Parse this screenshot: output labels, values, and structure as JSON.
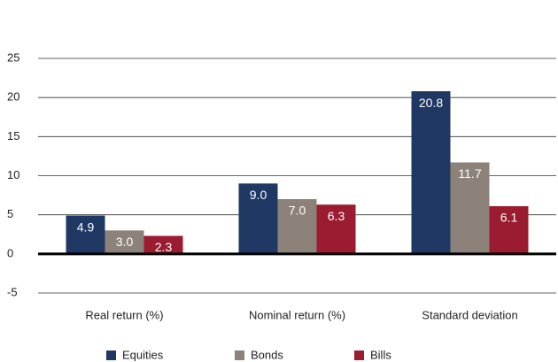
{
  "chart_data": {
    "type": "bar",
    "categories": [
      "Real return (%)",
      "Nominal return (%)",
      "Standard deviation"
    ],
    "series": [
      {
        "name": "Equities",
        "color": "#1f3864",
        "values": [
          4.9,
          9.0,
          20.8
        ],
        "value_labels": [
          "4.9",
          "9.0",
          "20.8"
        ]
      },
      {
        "name": "Bonds",
        "color": "#8c8279",
        "values": [
          3.0,
          7.0,
          11.7
        ],
        "value_labels": [
          "3.0",
          "7.0",
          "11.7"
        ]
      },
      {
        "name": "Bills",
        "color": "#9b1b30",
        "values": [
          2.3,
          6.3,
          6.1
        ],
        "value_labels": [
          "2.3",
          "6.3",
          "6.1"
        ]
      }
    ],
    "ylim": [
      -5,
      25
    ],
    "yticks": [
      -5,
      0,
      5,
      10,
      15,
      20,
      25
    ],
    "grid": true,
    "legend": "bottom"
  }
}
